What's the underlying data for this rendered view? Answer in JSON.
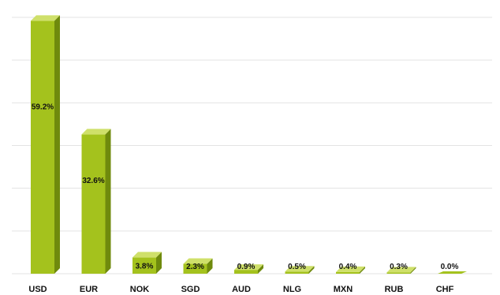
{
  "chart_data": {
    "type": "bar",
    "categories": [
      "USD",
      "EUR",
      "NOK",
      "SGD",
      "AUD",
      "NLG",
      "MXN",
      "RUB",
      "CHF"
    ],
    "values": [
      59.2,
      32.6,
      3.8,
      2.3,
      0.9,
      0.5,
      0.4,
      0.3,
      0.0
    ],
    "data_labels": [
      "59.2%",
      "32.6%",
      "3.8%",
      "2.3%",
      "0.9%",
      "0.5%",
      "0.4%",
      "0.3%",
      "0.0%"
    ],
    "title": "",
    "xlabel": "",
    "ylabel": "",
    "ylim": [
      0,
      60
    ],
    "grid": true,
    "legend": "none",
    "colors": {
      "bar_front": "#a4c21d",
      "bar_side": "#6f8a0d",
      "bar_top": "#cfe06a",
      "grid": "#e3e3e3"
    }
  }
}
